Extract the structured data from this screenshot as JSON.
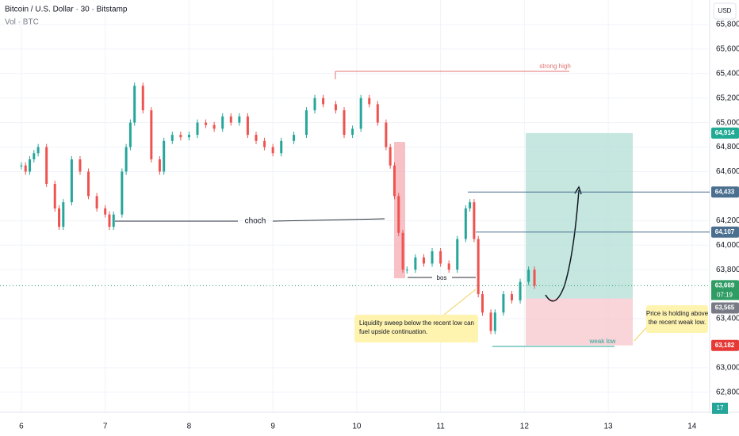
{
  "chart_data": {
    "type": "candlestick",
    "title": "Bitcoin / U.S. Dollar · 30 · Bitstamp",
    "subtitle": "Vol · BTC",
    "currency": "USD",
    "color_up": "#26a69a",
    "color_down": "#ef5350",
    "x": [
      6.0,
      6.05,
      6.1,
      6.15,
      6.2,
      6.3,
      6.4,
      6.45,
      6.5,
      6.6,
      6.7,
      6.8,
      6.9,
      7.0,
      7.05,
      7.1,
      7.2,
      7.25,
      7.3,
      7.35,
      7.45,
      7.55,
      7.65,
      7.7,
      7.8,
      7.9,
      8.0,
      8.1,
      8.2,
      8.3,
      8.4,
      8.5,
      8.6,
      8.7,
      8.8,
      8.9,
      9.0,
      9.1,
      9.25,
      9.4,
      9.5,
      9.6,
      9.75,
      9.85,
      9.95,
      10.05,
      10.15,
      10.25,
      10.35,
      10.4,
      10.45,
      10.5,
      10.55,
      10.6,
      10.7,
      10.8,
      10.9,
      11.0,
      11.1,
      11.2,
      11.3,
      11.35,
      11.4,
      11.45,
      11.5,
      11.6,
      11.65,
      11.75,
      11.85,
      11.95,
      12.05,
      12.12
    ],
    "values": [
      64650,
      64600,
      64700,
      64750,
      64800,
      64500,
      64300,
      64150,
      64350,
      64700,
      64600,
      64400,
      64300,
      64250,
      64150,
      64250,
      64600,
      64800,
      65000,
      65300,
      65100,
      64700,
      64600,
      64850,
      64900,
      64880,
      64900,
      65000,
      64980,
      64950,
      65050,
      65000,
      65050,
      64900,
      64850,
      64800,
      64750,
      64850,
      64900,
      65100,
      65200,
      65150,
      65100,
      64900,
      64950,
      65200,
      65150,
      65000,
      64800,
      64650,
      64400,
      64100,
      63800,
      63800,
      63900,
      63850,
      63950,
      63850,
      63800,
      64050,
      64300,
      64350,
      64050,
      63600,
      63450,
      63300,
      63450,
      63600,
      63550,
      63700,
      63800,
      63669
    ],
    "xlim": [
      5.745,
      14.21
    ],
    "ylim": [
      62637,
      66000
    ],
    "xticks": [
      6,
      7,
      8,
      9,
      10,
      11,
      12,
      13,
      14
    ],
    "yticks": [
      {
        "value": 65800,
        "label": "65,800"
      },
      {
        "value": 65600,
        "label": "65,600"
      },
      {
        "value": 65400,
        "label": "65,400"
      },
      {
        "value": 65200,
        "label": "65,200"
      },
      {
        "value": 65000,
        "label": "65,000"
      },
      {
        "value": 64800,
        "label": "64,800"
      },
      {
        "value": 64600,
        "label": "64,600"
      },
      {
        "value": 64200,
        "label": "64,200"
      },
      {
        "value": 64000,
        "label": "64,000"
      },
      {
        "value": 63800,
        "label": "63,800"
      },
      {
        "value": 63400,
        "label": "63,400"
      },
      {
        "value": 63000,
        "label": "63,000"
      },
      {
        "value": 62800,
        "label": "62,800"
      }
    ],
    "price_labels": [
      {
        "value": 64914,
        "label": "64,914",
        "color": "#22ab94"
      },
      {
        "value": 64433,
        "label": "64,433",
        "color": "#4a6f8f"
      },
      {
        "value": 64107,
        "label": "64,107",
        "color": "#4a6f8f"
      },
      {
        "value": 63669,
        "label": "63,669",
        "color": "#2e9c63"
      },
      {
        "value": 63565,
        "label": "63,565",
        "color": "#787b86"
      },
      {
        "value": 63182,
        "label": "63,182",
        "color": "#e53935"
      }
    ],
    "countdown": "07:19",
    "volume_badge": "17",
    "annotations": {
      "strong_high": "strong high",
      "choch": "choch",
      "bos": "bos",
      "weak_low": "weak low",
      "callout_left": [
        "Liquidity sweep below the recent low can",
        "fuel upside continuation."
      ],
      "callout_right": [
        "Price is holding above",
        "the recent weak low."
      ]
    }
  }
}
